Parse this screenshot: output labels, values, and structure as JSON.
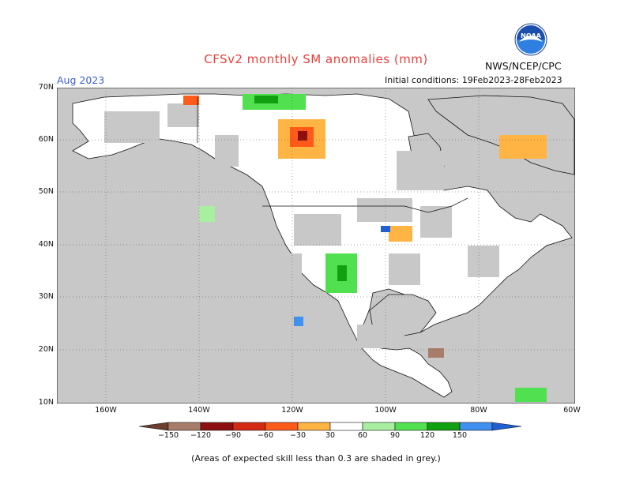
{
  "title": "CFSv2 monthly SM anomalies (mm)",
  "valid_month": "Aug 2023",
  "agency": "NWS/NCEP/CPC",
  "logo_text": "NOAA",
  "initial_conditions": "Initial conditions: 19Feb2023-28Feb2023",
  "footnote": "(Areas of expected skill less than 0.3 are shaded in grey.)",
  "lat_labels": [
    "70N",
    "60N",
    "50N",
    "40N",
    "30N",
    "20N",
    "10N"
  ],
  "lon_labels": [
    "160W",
    "140W",
    "120W",
    "100W",
    "80W",
    "60W"
  ],
  "colorbar": {
    "ticks": [
      "-150",
      "-120",
      "-90",
      "-60",
      "-30",
      "30",
      "60",
      "90",
      "120",
      "150"
    ],
    "colors": [
      "#6b3e2e",
      "#a87c6a",
      "#8c1010",
      "#d42a14",
      "#ff5a1a",
      "#ffb444",
      "#ffffff",
      "#a8f0a0",
      "#50e050",
      "#10a010",
      "#4090f0",
      "#2060d0"
    ]
  },
  "map_colors": {
    "ocean": "#c8c8c8",
    "land": "#ffffff",
    "skill_grey": "#c8c8c8"
  }
}
